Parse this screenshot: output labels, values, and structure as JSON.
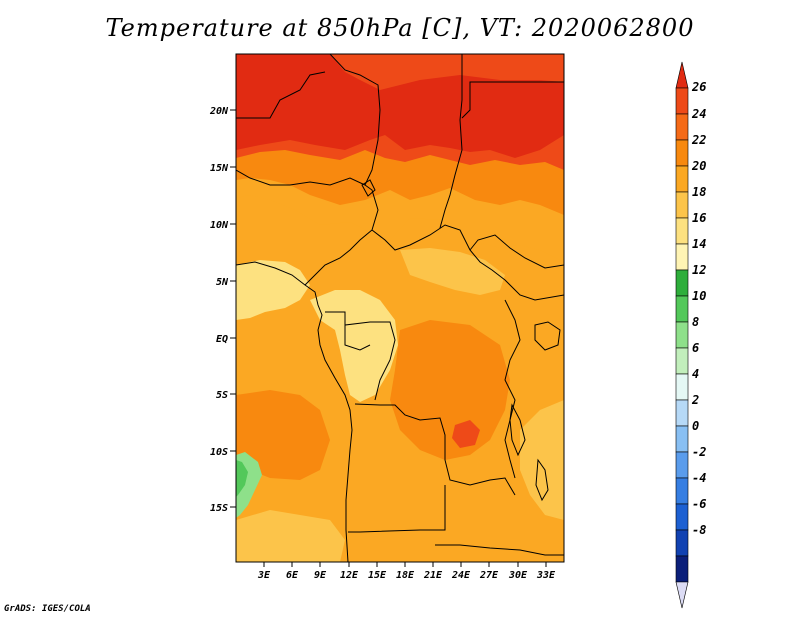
{
  "title": "Temperature at 850hPa [C], VT: 2020062800",
  "credit": "GrADS: IGES/COLA",
  "map": {
    "lat_ticks": [
      "20N",
      "15N",
      "10N",
      "5N",
      "EQ",
      "5S",
      "10S",
      "15S"
    ],
    "lon_ticks": [
      "3E",
      "6E",
      "9E",
      "12E",
      "15E",
      "18E",
      "21E",
      "24E",
      "27E",
      "30E",
      "33E"
    ]
  },
  "colorbar": {
    "levels": [
      "26",
      "24",
      "22",
      "20",
      "18",
      "16",
      "14",
      "12",
      "10",
      "8",
      "6",
      "4",
      "2",
      "0",
      "-2",
      "-4",
      "-6",
      "-8"
    ],
    "colors": [
      "#e12b12",
      "#ee4a18",
      "#f56a17",
      "#f8890f",
      "#fba823",
      "#fcc44a",
      "#fde180",
      "#fff4b4",
      "#2eae3b",
      "#53c85a",
      "#8ee08a",
      "#c2efbc",
      "#e5f8f5",
      "#b6d9f7",
      "#88bff3",
      "#5a9cec",
      "#367ee2",
      "#1c60d2",
      "#1142b2",
      "#0b1f7a",
      "#dcdcf5"
    ]
  },
  "fields": {
    "palette": {
      "red": "#e12b12",
      "redorange": "#ee4a18",
      "orange": "#f8890f",
      "amber": "#fba823",
      "gold": "#fcc44a",
      "lightyellow": "#fde180",
      "green": "#53c85a",
      "lightgreen": "#8ee08a"
    }
  }
}
